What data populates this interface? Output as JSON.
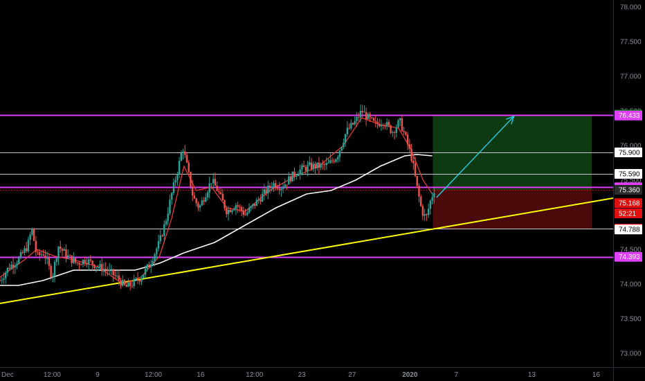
{
  "chart_data": {
    "type": "candlestick",
    "timeframe_note": "",
    "y_axis": {
      "ylim": [
        72.8,
        78.1
      ],
      "ticks": [
        {
          "value": 78.0,
          "label": "78.000"
        },
        {
          "value": 77.5,
          "label": "77.500"
        },
        {
          "value": 77.0,
          "label": "77.000"
        },
        {
          "value": 76.5,
          "label": "76.500"
        },
        {
          "value": 76.0,
          "label": "76.000"
        },
        {
          "value": 75.5,
          "label": "75.500"
        },
        {
          "value": 75.0,
          "label": "75.000"
        },
        {
          "value": 74.5,
          "label": "74.500"
        },
        {
          "value": 74.0,
          "label": "74.000"
        },
        {
          "value": 73.5,
          "label": "73.500"
        },
        {
          "value": 73.0,
          "label": "73.000"
        }
      ]
    },
    "x_axis": {
      "ticks": [
        {
          "label": "Dec",
          "pos": 0.0,
          "bold": false
        },
        {
          "label": "12:00",
          "pos": 0.08,
          "bold": false
        },
        {
          "label": "9",
          "pos": 0.165,
          "bold": false
        },
        {
          "label": "12:00",
          "pos": 0.245,
          "bold": false
        },
        {
          "label": "16",
          "pos": 0.33,
          "bold": false
        },
        {
          "label": "12:00",
          "pos": 0.41,
          "bold": false
        },
        {
          "label": "23",
          "pos": 0.495,
          "bold": false
        },
        {
          "label": "27",
          "pos": 0.577,
          "bold": false
        },
        {
          "label": "2020",
          "pos": 0.665,
          "bold": true
        },
        {
          "label": "7",
          "pos": 0.75,
          "bold": false
        },
        {
          "label": "13",
          "pos": 0.87,
          "bold": false
        },
        {
          "label": "16",
          "pos": 0.975,
          "bold": false
        }
      ]
    },
    "horizontal_levels": [
      {
        "value": 76.445,
        "label": "76.445",
        "color": "#e040fb",
        "badge_bg": "#0a8f10",
        "badge_fg": "#ffffff"
      },
      {
        "value": 75.9,
        "label": "75.900",
        "color": "#c8c8c8",
        "badge_bg": "#ffffff",
        "badge_fg": "#000000"
      },
      {
        "value": 75.59,
        "label": "75.590",
        "color": "#c8c8c8",
        "badge_bg": "#ffffff",
        "badge_fg": "#000000"
      },
      {
        "value": 75.396,
        "label": "75.396",
        "color": "#e040fb",
        "badge_bg": "#e040fb",
        "badge_fg": "#ffffff"
      },
      {
        "value": 74.8,
        "label": "74.800",
        "color": "#c8c8c8",
        "badge_bg": "#e01010",
        "badge_fg": "#ffffff"
      },
      {
        "value": 74.393,
        "label": "74.393",
        "color": "#e040fb",
        "badge_bg": "#e040fb",
        "badge_fg": "#ffffff"
      }
    ],
    "side_badges": [
      {
        "value": 76.433,
        "label": "76.433",
        "badge_bg": "#e040fb",
        "badge_fg": "#ffffff"
      },
      {
        "value": 75.36,
        "label": "75.360",
        "badge_bg": "#2b2b2b",
        "badge_fg": "#ffffff"
      },
      {
        "value": 75.168,
        "label": "75.168",
        "badge_bg": "#e01010",
        "badge_fg": "#ffffff"
      },
      {
        "value": 75.02,
        "label": "52:21",
        "badge_bg": "#e01010",
        "badge_fg": "#ffffff"
      },
      {
        "value": 74.788,
        "label": "74.788",
        "badge_bg": "#ffffff",
        "badge_fg": "#000000"
      }
    ],
    "current_price": {
      "value": 75.36,
      "color": "#e01010"
    },
    "trendline": {
      "points": [
        [
          0.0,
          73.72
        ],
        [
          1.0,
          75.24
        ]
      ],
      "color": "#ffff00"
    },
    "long_position": {
      "x_start": 0.706,
      "x_end": 0.965,
      "entry": 75.36,
      "target": 76.445,
      "stop": 74.8,
      "profit_color": "#0d3a12",
      "loss_color": "#4a0a0a"
    },
    "arrow": {
      "from": [
        0.712,
        75.25
      ],
      "to": [
        0.838,
        76.42
      ],
      "color": "#26c6da"
    },
    "price_path": [
      [
        0.0,
        74.05
      ],
      [
        0.015,
        74.25
      ],
      [
        0.03,
        74.35
      ],
      [
        0.045,
        74.55
      ],
      [
        0.052,
        74.8
      ],
      [
        0.06,
        74.4
      ],
      [
        0.072,
        74.45
      ],
      [
        0.085,
        74.1
      ],
      [
        0.095,
        74.55
      ],
      [
        0.11,
        74.4
      ],
      [
        0.125,
        74.3
      ],
      [
        0.14,
        74.35
      ],
      [
        0.16,
        74.25
      ],
      [
        0.175,
        74.2
      ],
      [
        0.19,
        74.1
      ],
      [
        0.205,
        73.95
      ],
      [
        0.215,
        74.0
      ],
      [
        0.23,
        74.1
      ],
      [
        0.245,
        74.3
      ],
      [
        0.26,
        74.6
      ],
      [
        0.27,
        74.9
      ],
      [
        0.28,
        75.3
      ],
      [
        0.29,
        75.65
      ],
      [
        0.298,
        75.98
      ],
      [
        0.305,
        75.7
      ],
      [
        0.315,
        75.25
      ],
      [
        0.325,
        75.1
      ],
      [
        0.335,
        75.3
      ],
      [
        0.345,
        75.5
      ],
      [
        0.355,
        75.35
      ],
      [
        0.37,
        75.05
      ],
      [
        0.385,
        75.15
      ],
      [
        0.4,
        75.0
      ],
      [
        0.415,
        75.15
      ],
      [
        0.43,
        75.3
      ],
      [
        0.445,
        75.45
      ],
      [
        0.46,
        75.4
      ],
      [
        0.475,
        75.55
      ],
      [
        0.49,
        75.65
      ],
      [
        0.505,
        75.7
      ],
      [
        0.52,
        75.7
      ],
      [
        0.535,
        75.72
      ],
      [
        0.55,
        75.85
      ],
      [
        0.565,
        76.2
      ],
      [
        0.58,
        76.35
      ],
      [
        0.59,
        76.5
      ],
      [
        0.6,
        76.4
      ],
      [
        0.612,
        76.3
      ],
      [
        0.625,
        76.35
      ],
      [
        0.64,
        76.2
      ],
      [
        0.652,
        76.35
      ],
      [
        0.662,
        76.1
      ],
      [
        0.672,
        75.8
      ],
      [
        0.68,
        75.4
      ],
      [
        0.688,
        75.05
      ],
      [
        0.695,
        74.95
      ],
      [
        0.702,
        75.2
      ],
      [
        0.708,
        75.36
      ]
    ],
    "ema_fast": [
      [
        0.0,
        74.1
      ],
      [
        0.04,
        74.35
      ],
      [
        0.06,
        74.5
      ],
      [
        0.09,
        74.4
      ],
      [
        0.12,
        74.35
      ],
      [
        0.16,
        74.25
      ],
      [
        0.2,
        74.0
      ],
      [
        0.23,
        74.1
      ],
      [
        0.26,
        74.4
      ],
      [
        0.28,
        74.95
      ],
      [
        0.3,
        75.7
      ],
      [
        0.32,
        75.35
      ],
      [
        0.345,
        75.4
      ],
      [
        0.37,
        75.1
      ],
      [
        0.4,
        75.05
      ],
      [
        0.44,
        75.35
      ],
      [
        0.48,
        75.55
      ],
      [
        0.52,
        75.7
      ],
      [
        0.56,
        76.0
      ],
      [
        0.59,
        76.4
      ],
      [
        0.62,
        76.3
      ],
      [
        0.65,
        76.25
      ],
      [
        0.67,
        75.95
      ],
      [
        0.69,
        75.5
      ],
      [
        0.705,
        75.3
      ]
    ],
    "ma_slow": [
      [
        0.0,
        73.98
      ],
      [
        0.03,
        73.98
      ],
      [
        0.07,
        74.05
      ],
      [
        0.12,
        74.2
      ],
      [
        0.17,
        74.2
      ],
      [
        0.22,
        74.2
      ],
      [
        0.26,
        74.3
      ],
      [
        0.3,
        74.45
      ],
      [
        0.35,
        74.6
      ],
      [
        0.4,
        74.85
      ],
      [
        0.45,
        75.1
      ],
      [
        0.5,
        75.3
      ],
      [
        0.54,
        75.35
      ],
      [
        0.58,
        75.5
      ],
      [
        0.62,
        75.7
      ],
      [
        0.66,
        75.85
      ],
      [
        0.68,
        75.87
      ],
      [
        0.705,
        75.85
      ]
    ]
  }
}
